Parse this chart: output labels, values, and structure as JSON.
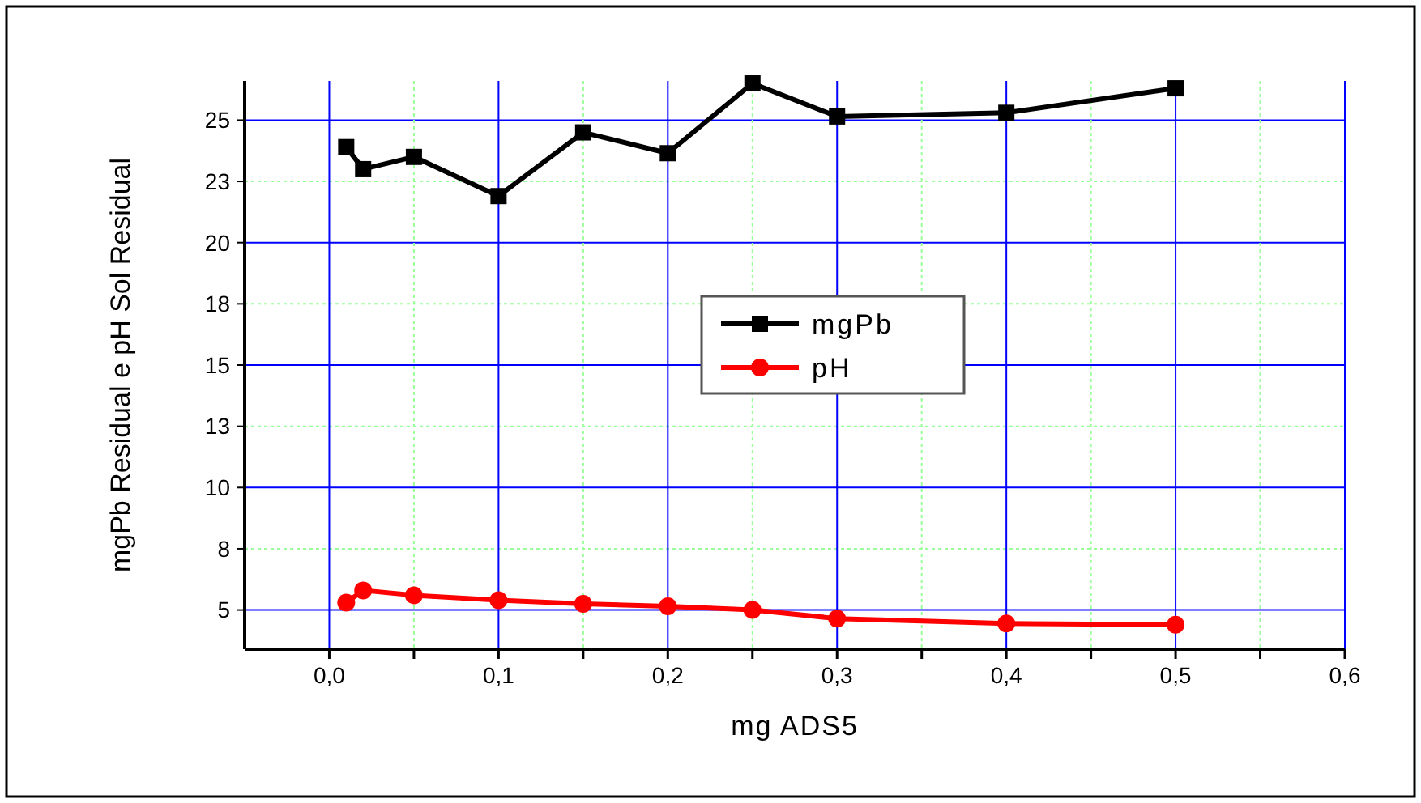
{
  "chart_data": {
    "type": "line",
    "xlabel": "mg ADS5",
    "ylabel": "mgPb Residual e pH Sol Residual",
    "x": [
      0.01,
      0.02,
      0.05,
      0.1,
      0.15,
      0.2,
      0.25,
      0.3,
      0.4,
      0.5
    ],
    "series": [
      {
        "name": "mgPb",
        "color": "#000000",
        "marker": "square",
        "values": [
          23.9,
          23.0,
          23.5,
          21.9,
          24.5,
          23.65,
          26.5,
          25.15,
          25.3,
          26.3
        ]
      },
      {
        "name": "pH",
        "color": "#ff0000",
        "marker": "circle",
        "values": [
          5.3,
          5.8,
          5.6,
          5.4,
          5.25,
          5.15,
          5.0,
          4.65,
          4.45,
          4.4
        ]
      }
    ],
    "xlim": [
      -0.05,
      0.6
    ],
    "xticks": [
      {
        "value": 0,
        "label": "0,0"
      },
      {
        "value": 0.05,
        "label": null
      },
      {
        "value": 0.1,
        "label": "0,1"
      },
      {
        "value": 0.15,
        "label": null
      },
      {
        "value": 0.2,
        "label": "0,2"
      },
      {
        "value": 0.25,
        "label": null
      },
      {
        "value": 0.3,
        "label": "0,3"
      },
      {
        "value": 0.35,
        "label": null
      },
      {
        "value": 0.4,
        "label": "0,4"
      },
      {
        "value": 0.45,
        "label": null
      },
      {
        "value": 0.5,
        "label": "0,5"
      },
      {
        "value": 0.55,
        "label": null
      },
      {
        "value": 0.6,
        "label": "0,6"
      }
    ],
    "ylim": [
      3.4,
      26.6
    ],
    "yticks": [
      5,
      {
        "value": 7.5,
        "label": "8"
      },
      10,
      {
        "value": 12.5,
        "label": "13"
      },
      15,
      {
        "value": 17.5,
        "label": "18"
      },
      20,
      {
        "value": 22.5,
        "label": "23"
      },
      25
    ],
    "grid": true,
    "legend": "center"
  }
}
